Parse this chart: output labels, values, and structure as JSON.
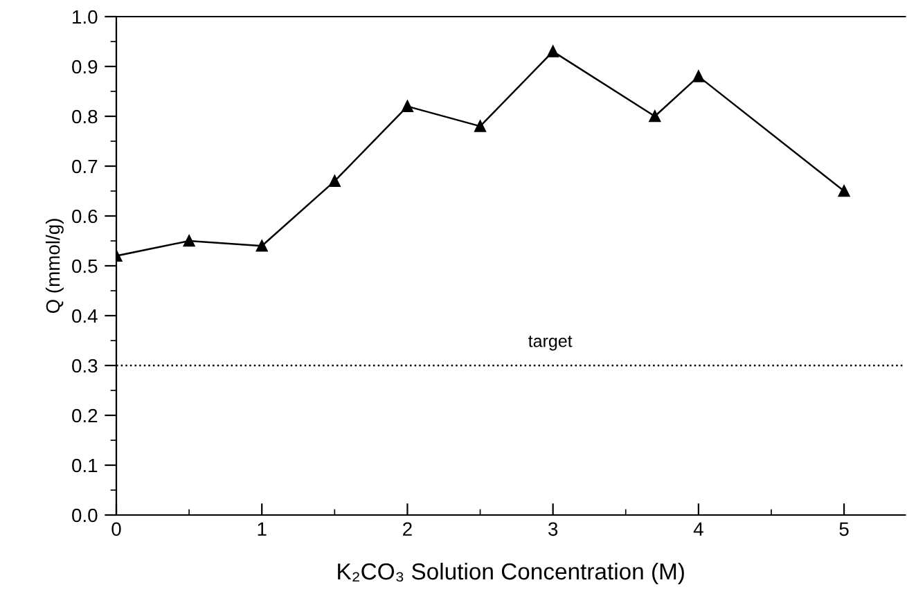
{
  "chart_data": {
    "type": "line",
    "xlabel": "K₂CO₃ Solution Concentration (M)",
    "ylabel": "Q (mmol/g)",
    "x": [
      0,
      0.5,
      1,
      1.5,
      2,
      2.5,
      3,
      3.7,
      4,
      5
    ],
    "series": [
      {
        "color": "#000000",
        "values": [
          0.52,
          0.55,
          0.54,
          0.67,
          0.82,
          0.78,
          0.93,
          0.8,
          0.88,
          0.65
        ]
      }
    ],
    "marker": "triangle",
    "line_style": "solid",
    "xlim": [
      0,
      5.42
    ],
    "xticks": [
      0,
      1,
      2,
      3,
      4,
      5
    ],
    "ylim": [
      0,
      1.0
    ],
    "yticks": [
      {
        "value": 0,
        "label": "0.0"
      },
      0.1,
      0.2,
      0.3,
      0.4,
      0.5,
      0.6,
      0.7,
      0.8,
      0.9,
      {
        "value": 1.0,
        "label": "1.0"
      }
    ],
    "ref_lines": [
      {
        "axis": "y",
        "value": 0.3,
        "label": "target",
        "color": "#000000",
        "line_style": "dotted"
      }
    ],
    "grid": false,
    "legend": false
  }
}
